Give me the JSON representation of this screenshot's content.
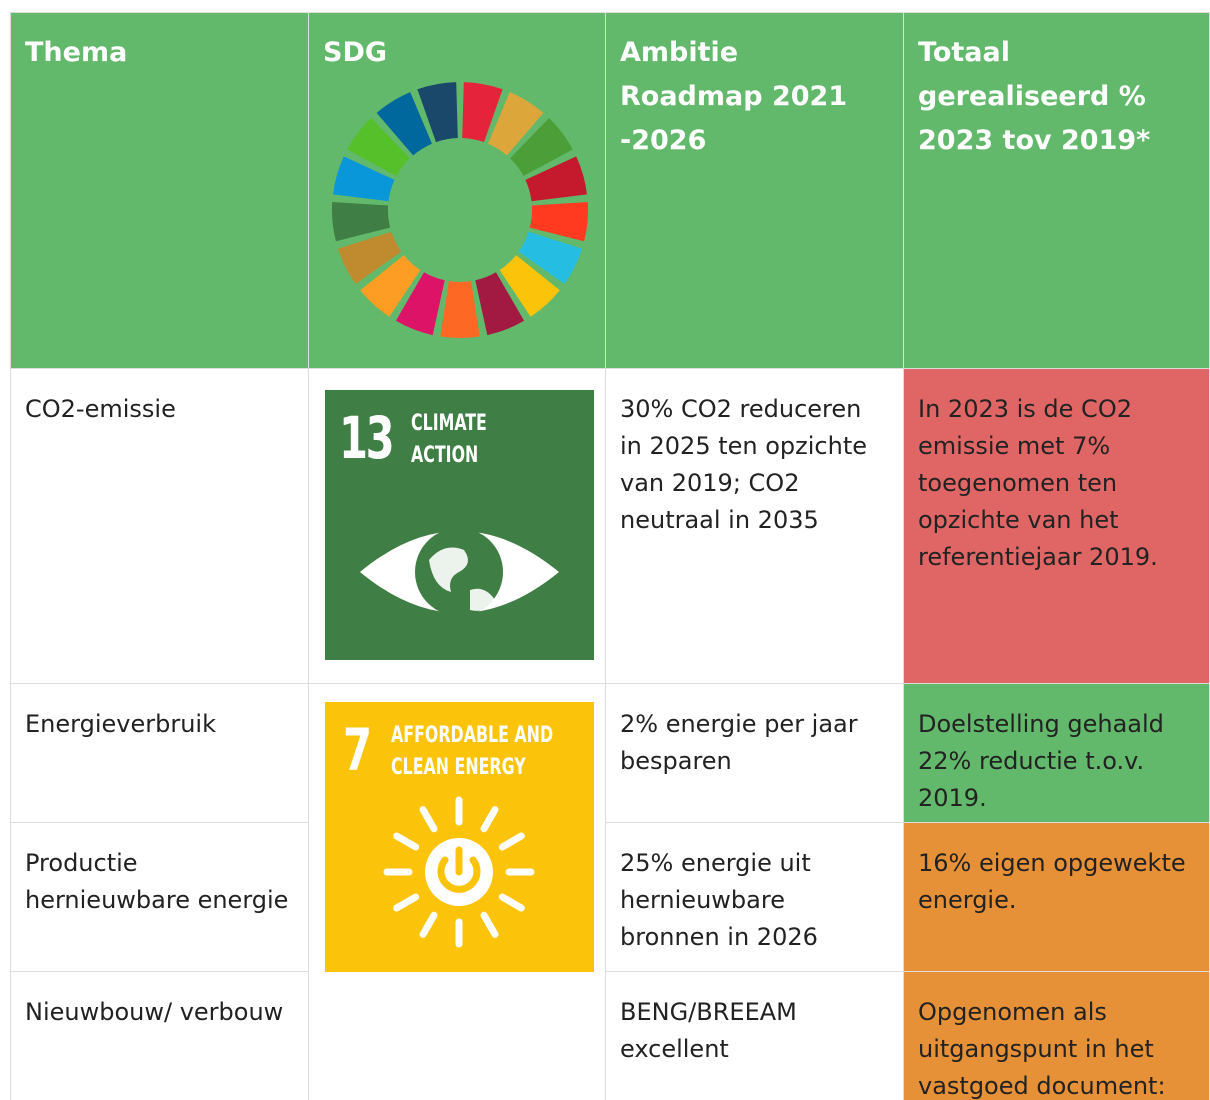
{
  "table": {
    "header": [
      "Thema",
      "SDG",
      "Ambitie Roadmap 2021 -2026",
      "Totaal gerealiseerd % 2023 tov 2019*"
    ],
    "rows": [
      {
        "thema": "CO2-emissie",
        "ambitie": "30% CO2 reduceren in 2025 ten opzichte van 2019; CO2 neutraal in 2035",
        "resultaat": "In 2023 is de CO2 emissie met 7% toegenomen ten opzichte van het referentiejaar 2019."
      },
      {
        "thema": "Energieverbruik",
        "ambitie": "2% energie per jaar besparen",
        "resultaat": "Doelstelling gehaald 22% reductie t.o.v. 2019."
      },
      {
        "thema": "Productie hernieuwbare energie",
        "ambitie": "25% energie uit hernieuwbare bronnen in 2026",
        "resultaat": "16% eigen opgewekte energie."
      },
      {
        "thema": "Nieuwbouw/ verbouw",
        "ambitie": "BENG/BREEAM excellent",
        "resultaat": "Opgenomen als uitgangspunt in het vastgoed document:"
      }
    ],
    "sdg_icons": [
      {
        "number": "13",
        "label": [
          "CLIMATE",
          "ACTION"
        ]
      },
      {
        "number": "7",
        "label": [
          "AFFORDABLE AND",
          "CLEAN ENERGY"
        ]
      }
    ]
  }
}
